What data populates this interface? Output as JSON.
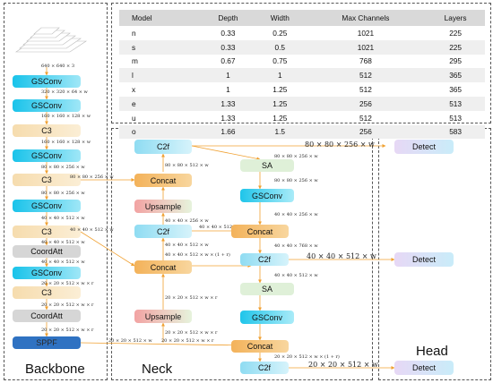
{
  "table": {
    "headers": [
      "Model",
      "Depth",
      "Width",
      "Max Channels",
      "Layers"
    ],
    "rows": [
      [
        "n",
        "0.33",
        "0.25",
        "1021",
        "225"
      ],
      [
        "s",
        "0.33",
        "0.5",
        "1021",
        "225"
      ],
      [
        "m",
        "0.67",
        "0.75",
        "768",
        "295"
      ],
      [
        "l",
        "1",
        "1",
        "512",
        "365"
      ],
      [
        "x",
        "1",
        "1.25",
        "512",
        "365"
      ],
      [
        "e",
        "1.33",
        "1.25",
        "256",
        "513"
      ],
      [
        "u",
        "1.33",
        "1.25",
        "512",
        "513"
      ],
      [
        "o",
        "1.66",
        "1.5",
        "256",
        "583"
      ]
    ]
  },
  "sections": {
    "backbone": "Backbone",
    "neck": "Neck",
    "head": "Head"
  },
  "backbone": {
    "input_dim": "640 × 640 × 3",
    "blocks": [
      "GSConv",
      "GSConv",
      "C3",
      "GSConv",
      "C3",
      "GSConv",
      "C3",
      "CoordAtt",
      "GSConv",
      "C3",
      "CoordAtt",
      "SPPF"
    ],
    "dims": [
      "320 × 320 × 64 × w",
      "160 × 160 × 128 × w",
      "160 × 160 × 128 × w",
      "80 × 80 × 256 × w",
      "80 × 80 × 256 × w",
      "40 × 40 × 512 × w",
      "40 × 40 × 512 × w",
      "40 × 40 × 512 × w",
      "20 × 20 × 512 × w × r",
      "20 × 20 × 512 × w × r",
      "20 × 20 × 512 × w × r"
    ],
    "side_dims": [
      "80 × 80 × 256 × w",
      "40 × 40 × 512 × w",
      "20 × 20 × 512 × w"
    ]
  },
  "neck": {
    "left": [
      "C2f",
      "Concat",
      "Upsample",
      "C2f",
      "Concat",
      "Upsample"
    ],
    "right": [
      "SA",
      "GSConv",
      "Concat",
      "C2f",
      "SA",
      "GSConv",
      "Concat",
      "C2f"
    ],
    "dims": [
      "80 × 80 × 256 × w",
      "80 × 80 × 512 × w",
      "40 × 40 × 256 × w",
      "40 × 40 × 512 × w",
      "40 × 40 × 512 × w × (1 + r)",
      "40 × 40 × 512 × w",
      "20 × 20 × 512 × w × r",
      "20 × 20 × 512 × w × r",
      "80 × 80 × 256 × w",
      "40 × 40 × 256 × w",
      "40 × 40 × 768 × w",
      "40 × 40 × 512 × w",
      "20 × 20 × 512 × w × r",
      "20 × 20 × 512 × w × (1 + r)"
    ],
    "out_dims": [
      "80 × 80 × 256 × w",
      "40 × 40 × 512 × w",
      "20 × 20 × 512 × w"
    ]
  },
  "head": {
    "detect": [
      "Detect",
      "Detect",
      "Detect"
    ]
  }
}
